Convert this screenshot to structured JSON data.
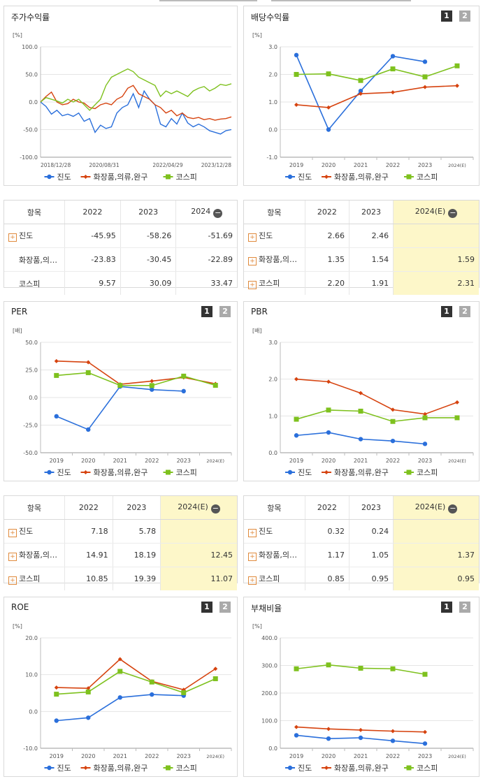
{
  "colors": {
    "jindo": "#2a6fdb",
    "cosmetics": "#d6430f",
    "kospi": "#7ec11e"
  },
  "legend": [
    "진도",
    "화장품,의류,완구",
    "코스피"
  ],
  "pager": [
    "1",
    "2"
  ],
  "chart_data": [
    {
      "id": "stock_return",
      "type": "line",
      "title": "주가수익률",
      "ylabel": "[%]",
      "ylim": [
        -100,
        100
      ],
      "yticks": [
        "100.0",
        "50.0",
        "0.0",
        "-50.0",
        "-100.0"
      ],
      "xticks": [
        "2018/12/28",
        "2020/08/31",
        "2022/04/29",
        "2023/12/28"
      ],
      "series": [
        {
          "name": "진도",
          "values": [
            0,
            -8,
            -22,
            -15,
            -25,
            -22,
            -26,
            -20,
            -35,
            -30,
            -55,
            -42,
            -48,
            -45,
            -20,
            -10,
            -5,
            15,
            -10,
            20,
            5,
            -5,
            -40,
            -45,
            -30,
            -40,
            -20,
            -38,
            -45,
            -40,
            -45,
            -52,
            -55,
            -58,
            -52,
            -50
          ]
        },
        {
          "name": "화장품,의류,완구",
          "values": [
            0,
            10,
            18,
            0,
            -5,
            -3,
            5,
            0,
            -2,
            -10,
            -12,
            -5,
            -2,
            -5,
            5,
            10,
            25,
            30,
            15,
            10,
            5,
            -5,
            -10,
            -20,
            -15,
            -25,
            -20,
            -28,
            -30,
            -28,
            -32,
            -30,
            -33,
            -31,
            -30,
            -27
          ]
        },
        {
          "name": "코스피",
          "values": [
            0,
            8,
            5,
            2,
            -2,
            5,
            0,
            5,
            -5,
            -15,
            -5,
            5,
            30,
            45,
            50,
            55,
            60,
            55,
            45,
            40,
            35,
            30,
            10,
            20,
            15,
            20,
            15,
            10,
            20,
            25,
            28,
            20,
            25,
            32,
            30,
            33
          ]
        }
      ]
    },
    {
      "id": "dividend_yield",
      "type": "line",
      "title": "배당수익률",
      "ylabel": "[%]",
      "ylim": [
        -1,
        3
      ],
      "yticks": [
        "3.0",
        "2.0",
        "1.0",
        "0.0",
        "-1.0"
      ],
      "categories": [
        "2019",
        "2020",
        "2021",
        "2022",
        "2023",
        "2024(E)"
      ],
      "series": [
        {
          "name": "진도",
          "values": [
            2.7,
            0.0,
            1.4,
            2.66,
            2.46,
            null
          ]
        },
        {
          "name": "화장품,의류,완구",
          "values": [
            0.9,
            0.8,
            1.3,
            1.35,
            1.54,
            1.59
          ]
        },
        {
          "name": "코스피",
          "values": [
            2.0,
            2.02,
            1.78,
            2.2,
            1.91,
            2.31
          ]
        }
      ]
    },
    {
      "id": "per",
      "type": "line",
      "title": "PER",
      "ylabel": "[배]",
      "ylim": [
        -50,
        50
      ],
      "yticks": [
        "50.0",
        "25.0",
        "0.0",
        "-25.0",
        "-50.0"
      ],
      "categories": [
        "2019",
        "2020",
        "2021",
        "2022",
        "2023",
        "2024(E)"
      ],
      "series": [
        {
          "name": "진도",
          "values": [
            -17,
            -29,
            10,
            7.18,
            5.78,
            null
          ]
        },
        {
          "name": "화장품,의류,완구",
          "values": [
            33,
            32,
            12,
            14.91,
            18.19,
            12.45
          ]
        },
        {
          "name": "코스피",
          "values": [
            20,
            22.5,
            11,
            10.85,
            19.39,
            11.07
          ]
        }
      ]
    },
    {
      "id": "pbr",
      "type": "line",
      "title": "PBR",
      "ylabel": "[배]",
      "ylim": [
        0,
        3
      ],
      "yticks": [
        "3.0",
        "2.0",
        "1.0",
        "0.0"
      ],
      "categories": [
        "2019",
        "2020",
        "2021",
        "2022",
        "2023",
        "2024(E)"
      ],
      "series": [
        {
          "name": "진도",
          "values": [
            0.47,
            0.55,
            0.37,
            0.32,
            0.24,
            null
          ]
        },
        {
          "name": "화장품,의류,완구",
          "values": [
            2.0,
            1.93,
            1.62,
            1.17,
            1.05,
            1.37
          ]
        },
        {
          "name": "코스피",
          "values": [
            0.91,
            1.16,
            1.13,
            0.85,
            0.95,
            0.95
          ]
        }
      ]
    },
    {
      "id": "roe",
      "type": "line",
      "title": "ROE",
      "ylabel": "[%]",
      "ylim": [
        -10,
        20
      ],
      "yticks": [
        "20.0",
        "10.0",
        "0.0",
        "-10.0"
      ],
      "categories": [
        "2019",
        "2020",
        "2021",
        "2022",
        "2023",
        "2024(E)"
      ],
      "series": [
        {
          "name": "진도",
          "values": [
            -2.5,
            -1.7,
            3.8,
            4.6,
            4.3,
            null
          ]
        },
        {
          "name": "화장품,의류,완구",
          "values": [
            6.5,
            6.3,
            14.2,
            8.2,
            5.9,
            11.6
          ]
        },
        {
          "name": "코스피",
          "values": [
            4.7,
            5.3,
            10.9,
            8.0,
            5.1,
            8.9
          ]
        }
      ]
    },
    {
      "id": "debt_ratio",
      "type": "line",
      "title": "부채비율",
      "ylabel": "[%]",
      "ylim": [
        0,
        400
      ],
      "yticks": [
        "400.0",
        "300.0",
        "200.0",
        "100.0",
        "0.0"
      ],
      "categories": [
        "2019",
        "2020",
        "2021",
        "2022",
        "2023",
        "2024(E)"
      ],
      "series": [
        {
          "name": "진도",
          "values": [
            47,
            35,
            38,
            27,
            17,
            null
          ]
        },
        {
          "name": "화장품,의류,완구",
          "values": [
            77,
            70,
            66,
            62,
            59,
            null
          ]
        },
        {
          "name": "코스피",
          "values": [
            288,
            302,
            290,
            288,
            268,
            null
          ]
        }
      ]
    }
  ],
  "tables": [
    {
      "id": "stock_return",
      "headers": [
        "항목",
        "2022",
        "2023",
        "2024"
      ],
      "minus": true,
      "hl_col": false,
      "rows": [
        {
          "label": "진도",
          "plus": true,
          "values": [
            "-45.95",
            "-58.26",
            "-51.69"
          ]
        },
        {
          "label": "화장품,의…",
          "plus": false,
          "values": [
            "-23.83",
            "-30.45",
            "-22.89"
          ]
        },
        {
          "label": "코스피",
          "plus": false,
          "values": [
            "9.57",
            "30.09",
            "33.47"
          ]
        }
      ]
    },
    {
      "id": "dividend_yield",
      "headers": [
        "항목",
        "2022",
        "2023",
        "2024(E)"
      ],
      "minus": true,
      "hl_col": true,
      "rows": [
        {
          "label": "진도",
          "plus": true,
          "values": [
            "2.66",
            "2.46",
            ""
          ]
        },
        {
          "label": "화장품,의…",
          "plus": true,
          "values": [
            "1.35",
            "1.54",
            "1.59"
          ]
        },
        {
          "label": "코스피",
          "plus": true,
          "values": [
            "2.20",
            "1.91",
            "2.31"
          ]
        }
      ]
    },
    {
      "id": "per",
      "headers": [
        "항목",
        "2022",
        "2023",
        "2024(E)"
      ],
      "minus": true,
      "hl_col": true,
      "rows": [
        {
          "label": "진도",
          "plus": true,
          "values": [
            "7.18",
            "5.78",
            ""
          ]
        },
        {
          "label": "화장품,의…",
          "plus": true,
          "values": [
            "14.91",
            "18.19",
            "12.45"
          ]
        },
        {
          "label": "코스피",
          "plus": true,
          "values": [
            "10.85",
            "19.39",
            "11.07"
          ]
        }
      ]
    },
    {
      "id": "pbr",
      "headers": [
        "항목",
        "2022",
        "2023",
        "2024(E)"
      ],
      "minus": true,
      "hl_col": true,
      "rows": [
        {
          "label": "진도",
          "plus": true,
          "values": [
            "0.32",
            "0.24",
            ""
          ]
        },
        {
          "label": "화장품,의…",
          "plus": true,
          "values": [
            "1.17",
            "1.05",
            "1.37"
          ]
        },
        {
          "label": "코스피",
          "plus": true,
          "values": [
            "0.85",
            "0.95",
            "0.95"
          ]
        }
      ]
    }
  ]
}
